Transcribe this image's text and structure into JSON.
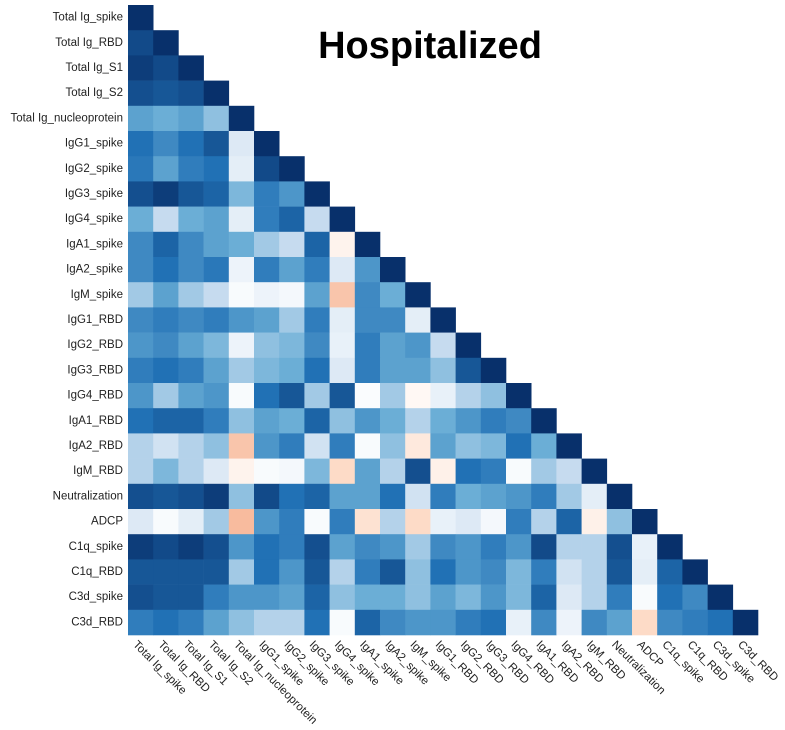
{
  "chart_data": {
    "type": "heatmap",
    "title": "Hospitalized",
    "categories": [
      "Total Ig_spike",
      "Total Ig_RBD",
      "Total Ig_S1",
      "Total Ig_S2",
      "Total Ig_nucleoprotein",
      "IgG1_spike",
      "IgG2_spike",
      "IgG3_spike",
      "IgG4_spike",
      "IgA1_spike",
      "IgA2_spike",
      "IgM_spike",
      "IgG1_RBD",
      "IgG2_RBD",
      "IgG3_RBD",
      "IgG4_RBD",
      "IgA1_RBD",
      "IgA2_RBD",
      "IgM_RBD",
      "Neutralization",
      "ADCP",
      "C1q_spike",
      "C1q_RBD",
      "C3d_spike",
      "C3d_RBD"
    ],
    "values": [
      [
        1
      ],
      [
        0.9,
        1
      ],
      [
        0.95,
        0.9,
        1
      ],
      [
        0.88,
        0.85,
        0.88,
        1
      ],
      [
        0.55,
        0.5,
        0.55,
        0.4,
        1
      ],
      [
        0.75,
        0.65,
        0.75,
        0.85,
        0.15,
        1
      ],
      [
        0.72,
        0.55,
        0.7,
        0.75,
        0.12,
        0.9,
        1
      ],
      [
        0.88,
        0.95,
        0.85,
        0.8,
        0.45,
        0.7,
        0.6,
        1
      ],
      [
        0.5,
        0.25,
        0.5,
        0.55,
        0.12,
        0.7,
        0.8,
        0.25,
        1
      ],
      [
        0.65,
        0.8,
        0.65,
        0.55,
        0.5,
        0.35,
        0.25,
        0.8,
        -0.08,
        1
      ],
      [
        0.65,
        0.75,
        0.65,
        0.72,
        0.08,
        0.7,
        0.55,
        0.7,
        0.15,
        0.6,
        1
      ],
      [
        0.35,
        0.55,
        0.35,
        0.25,
        0.03,
        0.08,
        0.05,
        0.55,
        -0.35,
        0.65,
        0.5,
        1
      ],
      [
        0.65,
        0.7,
        0.65,
        0.7,
        0.6,
        0.55,
        0.35,
        0.7,
        0.12,
        0.65,
        0.65,
        0.12,
        1
      ],
      [
        0.6,
        0.65,
        0.55,
        0.45,
        0.08,
        0.4,
        0.45,
        0.65,
        0.1,
        0.7,
        0.55,
        0.6,
        0.25,
        1
      ],
      [
        0.7,
        0.75,
        0.7,
        0.55,
        0.35,
        0.45,
        0.5,
        0.75,
        0.15,
        0.7,
        0.55,
        0.55,
        0.4,
        0.85,
        1
      ],
      [
        0.6,
        0.35,
        0.55,
        0.6,
        0.03,
        0.75,
        0.85,
        0.35,
        0.85,
        0.02,
        0.35,
        -0.05,
        0.1,
        0.3,
        0.4,
        1
      ],
      [
        0.75,
        0.8,
        0.8,
        0.7,
        0.4,
        0.55,
        0.5,
        0.8,
        0.4,
        0.6,
        0.5,
        0.3,
        0.5,
        0.6,
        0.7,
        0.65,
        1
      ],
      [
        0.3,
        0.2,
        0.3,
        0.4,
        -0.35,
        0.6,
        0.7,
        0.2,
        0.7,
        0.03,
        0.4,
        -0.15,
        0.55,
        0.4,
        0.45,
        0.75,
        0.5,
        1
      ],
      [
        0.3,
        0.45,
        0.3,
        0.15,
        -0.08,
        0.03,
        0.05,
        0.45,
        -0.25,
        0.55,
        0.3,
        0.88,
        -0.1,
        0.75,
        0.7,
        0.03,
        0.35,
        0.25,
        1
      ],
      [
        0.88,
        0.85,
        0.88,
        0.95,
        0.4,
        0.9,
        0.75,
        0.8,
        0.55,
        0.55,
        0.75,
        0.2,
        0.7,
        0.5,
        0.55,
        0.6,
        0.7,
        0.35,
        0.12,
        1
      ],
      [
        0.15,
        0.03,
        0.12,
        0.35,
        -0.4,
        0.6,
        0.7,
        0.03,
        0.7,
        -0.2,
        0.3,
        -0.25,
        0.1,
        0.15,
        0.05,
        0.7,
        0.3,
        0.8,
        -0.1,
        0.4,
        1
      ],
      [
        0.95,
        0.9,
        0.95,
        0.88,
        0.6,
        0.75,
        0.7,
        0.88,
        0.55,
        0.65,
        0.6,
        0.35,
        0.65,
        0.6,
        0.7,
        0.6,
        0.9,
        0.3,
        0.3,
        0.88,
        0.1,
        1
      ],
      [
        0.85,
        0.85,
        0.85,
        0.85,
        0.35,
        0.75,
        0.6,
        0.85,
        0.3,
        0.7,
        0.85,
        0.4,
        0.75,
        0.6,
        0.65,
        0.45,
        0.7,
        0.2,
        0.3,
        0.85,
        0.12,
        0.8,
        1
      ],
      [
        0.88,
        0.85,
        0.85,
        0.7,
        0.6,
        0.6,
        0.55,
        0.8,
        0.4,
        0.5,
        0.5,
        0.4,
        0.55,
        0.45,
        0.6,
        0.45,
        0.8,
        0.15,
        0.3,
        0.7,
        0.03,
        0.75,
        0.65,
        1
      ],
      [
        0.7,
        0.75,
        0.7,
        0.55,
        0.4,
        0.3,
        0.3,
        0.75,
        0.03,
        0.8,
        0.65,
        0.6,
        0.6,
        0.7,
        0.75,
        0.1,
        0.65,
        0.08,
        0.65,
        0.55,
        -0.25,
        0.65,
        0.7,
        0.75,
        1
      ]
    ],
    "vlim": [
      -1,
      1
    ],
    "colormap": [
      "#b2182b",
      "#d6604d",
      "#f4a582",
      "#fddbc7",
      "#ffffff",
      "#c6dbef",
      "#6baed6",
      "#2171b5",
      "#08306b"
    ]
  }
}
